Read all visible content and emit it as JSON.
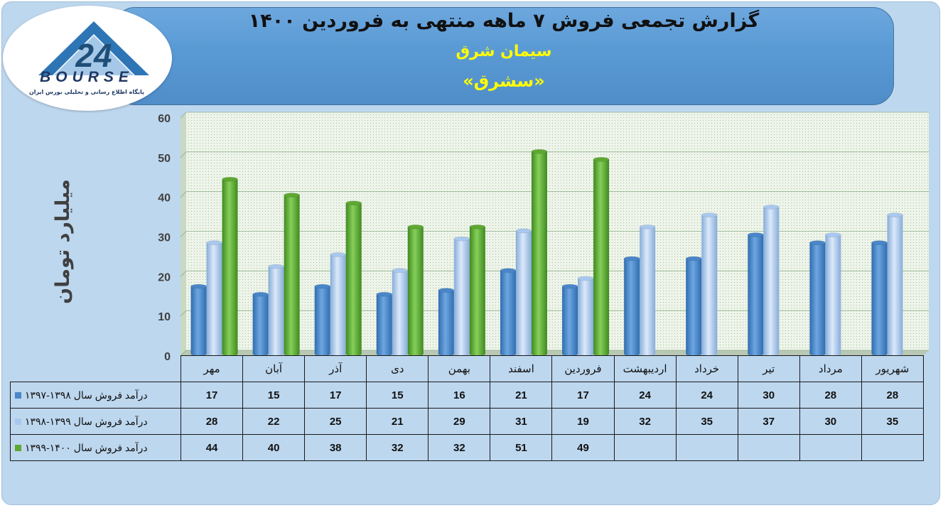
{
  "header": {
    "title": "گزارش تجمعی فروش ۷ ماهه منتهی به فروردین  ۱۴۰۰",
    "company": "سیمان شرق",
    "ticker": "«سشرق»"
  },
  "logo": {
    "wordmark": "BOURSE",
    "tagline": "پایگاه اطلاع رسانی و تحلیلی بورس ایران",
    "number_mark": "24"
  },
  "colors": {
    "series1": "#4a86c8",
    "series2": "#a9c8ee",
    "series3": "#5ea832"
  },
  "chart_data": {
    "type": "bar",
    "ylabel": "میلیارد تومان",
    "ylim": [
      0,
      60
    ],
    "yticks": [
      "0",
      "10",
      "20",
      "30",
      "40",
      "50",
      "60"
    ],
    "grid": true,
    "categories": [
      "مهر",
      "آبان",
      "آذر",
      "دی",
      "بهمن",
      "اسفند",
      "فروردین",
      "اردیبهشت",
      "خرداد",
      "تیر",
      "مرداد",
      "شهریور"
    ],
    "series": [
      {
        "name": "درآمد فروش سال ۱۳۹۸-۱۳۹۷",
        "values": [
          17,
          15,
          17,
          15,
          16,
          21,
          17,
          24,
          24,
          30,
          28,
          28
        ]
      },
      {
        "name": "درآمد فروش سال ۱۳۹۹-۱۳۹۸",
        "values": [
          28,
          22,
          25,
          21,
          29,
          31,
          19,
          32,
          35,
          37,
          30,
          35
        ]
      },
      {
        "name": "درآمد فروش سال ۱۴۰۰-۱۳۹۹",
        "values": [
          44,
          40,
          38,
          32,
          32,
          51,
          49,
          null,
          null,
          null,
          null,
          null
        ]
      }
    ]
  }
}
